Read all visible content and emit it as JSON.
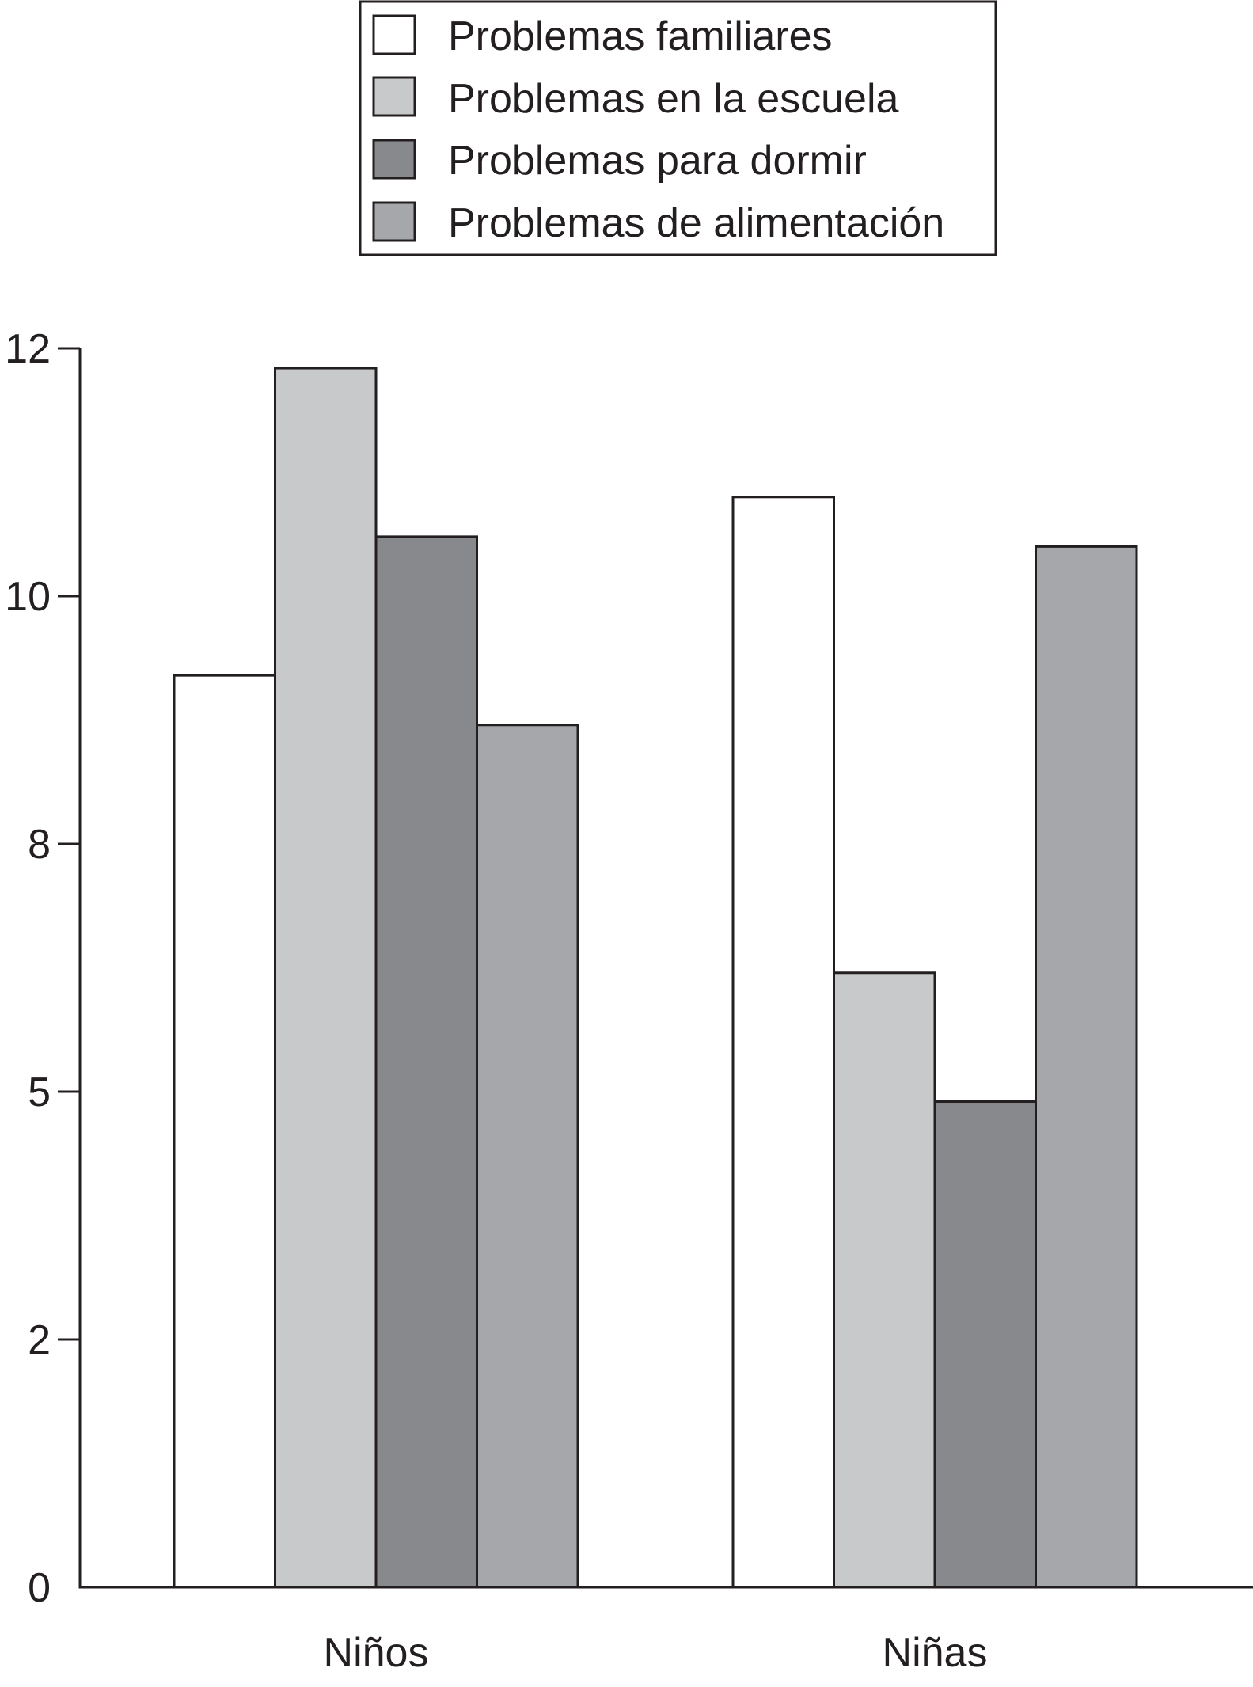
{
  "chart_data": {
    "type": "bar",
    "categories": [
      "Niños",
      "Niñas"
    ],
    "series": [
      {
        "name": "Problemas familiares",
        "color": "#ffffff",
        "values": [
          9.2,
          11.0
        ]
      },
      {
        "name": "Problemas en la escuela",
        "color": "#c8c9cb",
        "values": [
          12.3,
          6.2
        ]
      },
      {
        "name": "Problemas para dormir",
        "color": "#88898d",
        "values": [
          10.6,
          4.9
        ]
      },
      {
        "name": "Problemas de alimentación",
        "color": "#a6a7aa",
        "values": [
          8.7,
          10.5
        ]
      }
    ],
    "ytick_labels": [
      "0",
      "2",
      "5",
      "8",
      "10",
      "12"
    ],
    "ytick_values": [
      0,
      2.5,
      5,
      7.5,
      10,
      12.5
    ],
    "ylim": [
      0,
      12.5
    ],
    "title": "",
    "xlabel": "",
    "ylabel": "",
    "grid": false,
    "legend_position": "top-center",
    "axis_color": "#231f20"
  }
}
